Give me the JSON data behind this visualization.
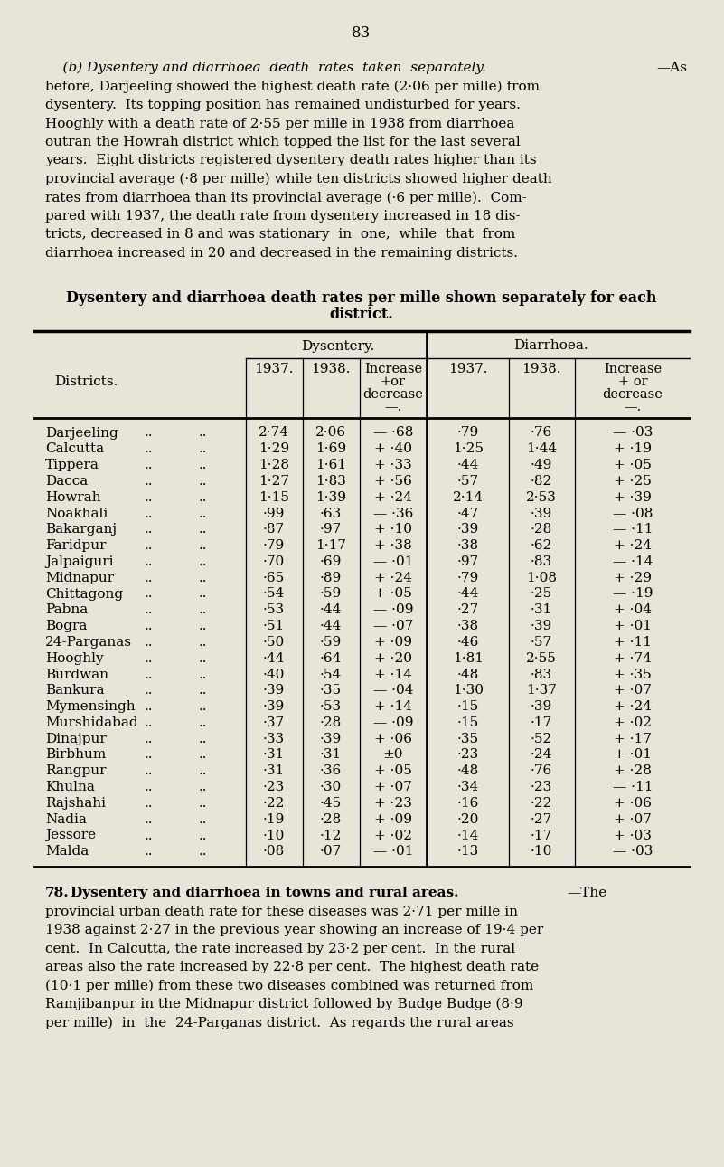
{
  "page_number": "83",
  "bg_color": "#e8e4d8",
  "rows": [
    [
      "Darjeeling",
      "2·74",
      "2·06",
      "— ·68",
      "·79",
      "·76",
      "— ·03"
    ],
    [
      "Calcutta",
      "1·29",
      "1·69",
      "+ ·40",
      "1·25",
      "1·44",
      "+ ·19"
    ],
    [
      "Tippera",
      "1·28",
      "1·61",
      "+ ·33",
      "·44",
      "·49",
      "+ ·05"
    ],
    [
      "Dacca",
      "1·27",
      "1·83",
      "+ ·56",
      "·57",
      "·82",
      "+ ·25"
    ],
    [
      "Howrah",
      "1·15",
      "1·39",
      "+ ·24",
      "2·14",
      "2·53",
      "+ ·39"
    ],
    [
      "Noakhali",
      "·99",
      "·63",
      "— ·36",
      "·47",
      "·39",
      "— ·08"
    ],
    [
      "Bakarganj",
      "·87",
      "·97",
      "+ ·10",
      "·39",
      "·28",
      "— ·11"
    ],
    [
      "Faridpur",
      "·79",
      "1·17",
      "+ ·38",
      "·38",
      "·62",
      "+ ·24"
    ],
    [
      "Jalpaiguri",
      "·70",
      "·69",
      "— ·01",
      "·97",
      "·83",
      "— ·14"
    ],
    [
      "Midnapur",
      "·65",
      "·89",
      "+ ·24",
      "·79",
      "1·08",
      "+ ·29"
    ],
    [
      "Chittagong",
      "·54",
      "·59",
      "+ ·05",
      "·44",
      "·25",
      "— ·19"
    ],
    [
      "Pabna",
      "·53",
      "·44",
      "— ·09",
      "·27",
      "·31",
      "+ ·04"
    ],
    [
      "Bogra",
      "·51",
      "·44",
      "— ·07",
      "·38",
      "·39",
      "+ ·01"
    ],
    [
      "24-Parganas",
      "·50",
      "·59",
      "+ ·09",
      "·46",
      "·57",
      "+ ·11"
    ],
    [
      "Hooghly",
      "·44",
      "·64",
      "+ ·20",
      "1·81",
      "2·55",
      "+ ·74"
    ],
    [
      "Burdwan",
      "·40",
      "·54",
      "+ ·14",
      "·48",
      "·83",
      "+ ·35"
    ],
    [
      "Bankura",
      "·39",
      "·35",
      "— ·04",
      "1·30",
      "1·37",
      "+ ·07"
    ],
    [
      "Mymensingh",
      "·39",
      "·53",
      "+ ·14",
      "·15",
      "·39",
      "+ ·24"
    ],
    [
      "Murshidabad",
      "·37",
      "·28",
      "— ·09",
      "·15",
      "·17",
      "+ ·02"
    ],
    [
      "Dinajpur",
      "·33",
      "·39",
      "+ ·06",
      "·35",
      "·52",
      "+ ·17"
    ],
    [
      "Birbhum",
      "·31",
      "·31",
      "±0",
      "·23",
      "·24",
      "+ ·01"
    ],
    [
      "Rangpur",
      "·31",
      "·36",
      "+ ·05",
      "·48",
      "·76",
      "+ ·28"
    ],
    [
      "Khulna",
      "·23",
      "·30",
      "+ ·07",
      "·34",
      "·23",
      "— ·11"
    ],
    [
      "Rajshahi",
      "·22",
      "·45",
      "+ ·23",
      "·16",
      "·22",
      "+ ·06"
    ],
    [
      "Nadia",
      "·19",
      "·28",
      "+ ·09",
      "·20",
      "·27",
      "+ ·07"
    ],
    [
      "Jessore",
      "·10",
      "·12",
      "+ ·02",
      "·14",
      "·17",
      "+ ·03"
    ],
    [
      "Malda",
      "·08",
      "·07",
      "— ·01",
      "·13",
      "·10",
      "— ·03"
    ]
  ],
  "table_title_line1": "Dysentery and diarrhoea death rates per mille shown separately for each",
  "table_title_line2": "district.",
  "footer_para_num": "78.",
  "footer_bold": "Dysentery and diarrhoea in towns and rural areas.",
  "para_lines": [
    "    (b) Dysentery and diarrhoea  death  rates  taken  separately.—As",
    "before, Darjeeling showed the highest death rate (2·06 per mille) from",
    "dysentery.  Its topping position has remained undisturbed for years.",
    "Hooghly with a death rate of 2·55 per mille in 1938 from diarrhoea",
    "outran the Howrah district which topped the list for the last several",
    "years.  Eight districts registered dysentery death rates higher than its",
    "provincial average (·8 per mille) while ten districts showed higher death",
    "rates from diarrhoea than its provincial average (·6 per mille).  Com-",
    "pared with 1937, the death rate from dysentery increased in 18 dis-",
    "tricts, decreased in 8 and was stationary  in  one,  while  that  from",
    "diarrhoea increased in 20 and decreased in the remaining districts."
  ],
  "footer_lines": [
    "provincial urban death rate for these diseases was 2·71 per mille in",
    "1938 against 2·27 in the previous year showing an increase of 19·4 per",
    "cent.  In Calcutta, the rate increased by 23·2 per cent.  In the rural",
    "areas also the rate increased by 22·8 per cent.  The highest death rate",
    "(10·1 per mille) from these two diseases combined was returned from",
    "Ramjibanpur in the Midnapur district followed by Budge Budge (8·9",
    "per mille)  in  the  24-Parganas district.  As regards the rural areas"
  ]
}
